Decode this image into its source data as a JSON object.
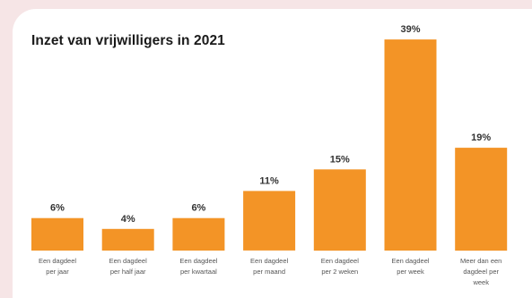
{
  "chart_data": {
    "type": "bar",
    "title": "Inzet van vrijwilligers in 2021",
    "categories": [
      [
        "Een dagdeel",
        "per jaar"
      ],
      [
        "Een dagdeel",
        "per half jaar"
      ],
      [
        "Een dagdeel",
        "per kwartaal"
      ],
      [
        "Een dagdeel",
        "per maand"
      ],
      [
        "Een dagdeel",
        "per 2 weken"
      ],
      [
        "Een dagdeel",
        "per week"
      ],
      [
        "Meer dan een",
        "dagdeel per",
        "week"
      ]
    ],
    "values": [
      6,
      4,
      6,
      11,
      15,
      39,
      19
    ],
    "value_labels": [
      "6%",
      "4%",
      "6%",
      "11%",
      "15%",
      "39%",
      "19%"
    ],
    "unit": "%",
    "bar_color": "#f39426",
    "grid": false,
    "legend": "none"
  }
}
